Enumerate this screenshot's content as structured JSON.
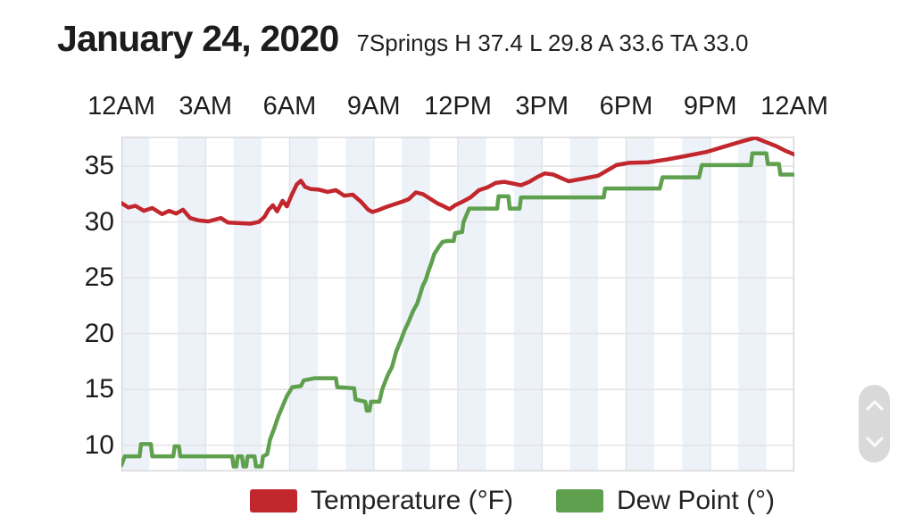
{
  "header": {
    "title": "January 24, 2020",
    "subtitle": "7Springs H 37.4 L 29.8 A 33.6 TA 33.0"
  },
  "chart_data": {
    "type": "line",
    "title": "January 24, 2020",
    "subtitle": "7Springs H 37.4 L 29.8 A 33.6 TA 33.0",
    "station": "7Springs",
    "stats": {
      "high": 37.4,
      "low": 29.8,
      "average": 33.6,
      "current": 33.0
    },
    "x": {
      "unit": "hour",
      "range": [
        0,
        24
      ],
      "tick_hours": [
        0,
        3,
        6,
        9,
        12,
        15,
        18,
        21,
        24
      ],
      "tick_labels": [
        "12AM",
        "3AM",
        "6AM",
        "9AM",
        "12PM",
        "3PM",
        "6PM",
        "9PM",
        "12AM"
      ],
      "stripe_every_hours": 1
    },
    "y": {
      "range": [
        7.65,
        37.65
      ],
      "ticks": [
        35,
        30,
        25,
        20,
        15,
        10
      ]
    },
    "grid": true,
    "legend_position": "bottom",
    "series": [
      {
        "name": "Temperature (°F)",
        "color": "#c1272d",
        "points": [
          [
            0,
            31.7
          ],
          [
            0.25,
            31.3
          ],
          [
            0.5,
            31.45
          ],
          [
            0.8,
            31.0
          ],
          [
            1.1,
            31.25
          ],
          [
            1.45,
            30.7
          ],
          [
            1.7,
            31.0
          ],
          [
            1.95,
            30.75
          ],
          [
            2.2,
            31.1
          ],
          [
            2.45,
            30.35
          ],
          [
            2.75,
            30.15
          ],
          [
            3.1,
            30.05
          ],
          [
            3.55,
            30.35
          ],
          [
            3.8,
            29.95
          ],
          [
            4.2,
            29.9
          ],
          [
            4.6,
            29.85
          ],
          [
            4.9,
            30.0
          ],
          [
            5.1,
            30.45
          ],
          [
            5.25,
            31.1
          ],
          [
            5.4,
            31.5
          ],
          [
            5.55,
            30.95
          ],
          [
            5.75,
            31.9
          ],
          [
            5.9,
            31.4
          ],
          [
            6.05,
            32.3
          ],
          [
            6.25,
            33.35
          ],
          [
            6.4,
            33.7
          ],
          [
            6.55,
            33.15
          ],
          [
            6.75,
            32.95
          ],
          [
            7.05,
            32.9
          ],
          [
            7.35,
            32.7
          ],
          [
            7.65,
            32.85
          ],
          [
            7.95,
            32.35
          ],
          [
            8.25,
            32.45
          ],
          [
            8.55,
            31.8
          ],
          [
            8.8,
            31.1
          ],
          [
            8.95,
            30.9
          ],
          [
            9.15,
            31.05
          ],
          [
            9.45,
            31.35
          ],
          [
            9.75,
            31.6
          ],
          [
            10.05,
            31.85
          ],
          [
            10.25,
            32.05
          ],
          [
            10.5,
            32.65
          ],
          [
            10.75,
            32.5
          ],
          [
            11.0,
            32.1
          ],
          [
            11.25,
            31.7
          ],
          [
            11.5,
            31.4
          ],
          [
            11.7,
            31.15
          ],
          [
            11.9,
            31.5
          ],
          [
            12.15,
            31.8
          ],
          [
            12.45,
            32.2
          ],
          [
            12.75,
            32.85
          ],
          [
            13.05,
            33.1
          ],
          [
            13.35,
            33.5
          ],
          [
            13.65,
            33.6
          ],
          [
            13.95,
            33.45
          ],
          [
            14.25,
            33.3
          ],
          [
            14.55,
            33.6
          ],
          [
            14.85,
            34.05
          ],
          [
            15.1,
            34.35
          ],
          [
            15.4,
            34.25
          ],
          [
            15.95,
            33.65
          ],
          [
            16.5,
            33.9
          ],
          [
            17.0,
            34.15
          ],
          [
            17.65,
            35.1
          ],
          [
            18.1,
            35.3
          ],
          [
            18.8,
            35.35
          ],
          [
            19.45,
            35.6
          ],
          [
            20.1,
            35.9
          ],
          [
            20.9,
            36.3
          ],
          [
            21.5,
            36.75
          ],
          [
            22.1,
            37.2
          ],
          [
            22.6,
            37.55
          ],
          [
            23.0,
            37.15
          ],
          [
            23.35,
            36.8
          ],
          [
            23.7,
            36.35
          ],
          [
            24,
            36.05
          ]
        ]
      },
      {
        "name": "Dew Point (°)",
        "color": "#5fa04e",
        "points": [
          [
            0,
            8.2
          ],
          [
            0.12,
            9.0
          ],
          [
            0.65,
            9.0
          ],
          [
            0.7,
            10.1
          ],
          [
            1.05,
            10.1
          ],
          [
            1.1,
            9.0
          ],
          [
            1.85,
            9.0
          ],
          [
            1.9,
            9.9
          ],
          [
            2.05,
            9.9
          ],
          [
            2.1,
            9.0
          ],
          [
            3.95,
            9.0
          ],
          [
            4.0,
            8.1
          ],
          [
            4.1,
            8.1
          ],
          [
            4.15,
            9.0
          ],
          [
            4.3,
            9.0
          ],
          [
            4.35,
            8.1
          ],
          [
            4.45,
            8.1
          ],
          [
            4.5,
            9.0
          ],
          [
            4.75,
            9.0
          ],
          [
            4.8,
            8.1
          ],
          [
            5.0,
            8.1
          ],
          [
            5.05,
            9.0
          ],
          [
            5.2,
            9.2
          ],
          [
            5.3,
            10.5
          ],
          [
            5.45,
            11.5
          ],
          [
            5.6,
            12.6
          ],
          [
            5.75,
            13.5
          ],
          [
            5.9,
            14.4
          ],
          [
            6.1,
            15.2
          ],
          [
            6.4,
            15.3
          ],
          [
            6.5,
            15.8
          ],
          [
            6.9,
            16.0
          ],
          [
            7.65,
            16.0
          ],
          [
            7.7,
            15.2
          ],
          [
            8.3,
            15.1
          ],
          [
            8.35,
            14.1
          ],
          [
            8.7,
            13.9
          ],
          [
            8.75,
            13.1
          ],
          [
            8.85,
            13.1
          ],
          [
            8.9,
            13.9
          ],
          [
            9.2,
            13.9
          ],
          [
            9.3,
            15.0
          ],
          [
            9.5,
            16.3
          ],
          [
            9.65,
            17.0
          ],
          [
            9.8,
            18.4
          ],
          [
            9.95,
            19.3
          ],
          [
            10.1,
            20.3
          ],
          [
            10.25,
            21.1
          ],
          [
            10.4,
            22.0
          ],
          [
            10.55,
            22.7
          ],
          [
            10.65,
            23.5
          ],
          [
            10.75,
            24.3
          ],
          [
            10.85,
            24.8
          ],
          [
            10.95,
            25.6
          ],
          [
            11.05,
            26.3
          ],
          [
            11.15,
            27.1
          ],
          [
            11.3,
            27.7
          ],
          [
            11.45,
            28.2
          ],
          [
            11.6,
            28.3
          ],
          [
            11.85,
            28.3
          ],
          [
            11.9,
            29.0
          ],
          [
            12.15,
            29.1
          ],
          [
            12.2,
            30.0
          ],
          [
            12.4,
            31.2
          ],
          [
            13.4,
            31.2
          ],
          [
            13.45,
            32.3
          ],
          [
            13.8,
            32.3
          ],
          [
            13.85,
            31.2
          ],
          [
            14.2,
            31.2
          ],
          [
            14.25,
            32.2
          ],
          [
            17.2,
            32.2
          ],
          [
            17.25,
            33.0
          ],
          [
            19.2,
            33.0
          ],
          [
            19.3,
            34.0
          ],
          [
            20.6,
            34.0
          ],
          [
            20.7,
            35.1
          ],
          [
            22.45,
            35.1
          ],
          [
            22.5,
            36.15
          ],
          [
            23.0,
            36.15
          ],
          [
            23.05,
            35.2
          ],
          [
            23.45,
            35.2
          ],
          [
            23.5,
            34.25
          ],
          [
            24,
            34.25
          ]
        ]
      }
    ]
  },
  "colors": {
    "background": "#ffffff",
    "stripe": "#edf2f8",
    "gridline": "#e3e3e3",
    "plot_border": "#d9d9d9",
    "text": "#1c1c1c",
    "scroll_pill": "#d9d9d9",
    "scroll_chevron": "#fafafa"
  },
  "scroll_widget": {
    "up_icon": "chevron-up",
    "down_icon": "chevron-down"
  }
}
